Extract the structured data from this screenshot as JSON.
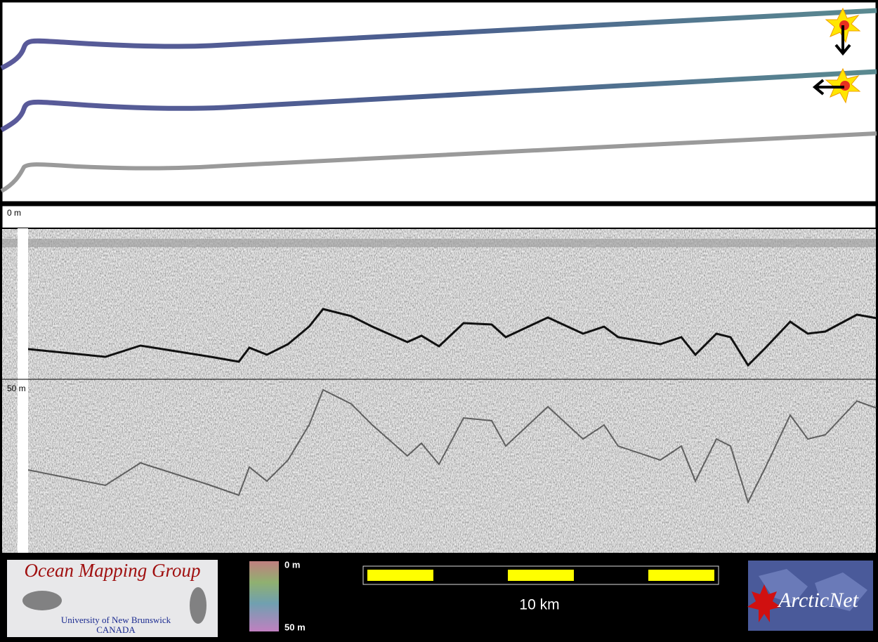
{
  "profile": {
    "depth_labels": [
      "0 m",
      "50 m"
    ]
  },
  "footer": {
    "logo": {
      "title": "Ocean Mapping Group",
      "subtitle": "University of New Brunswick",
      "country": "CANADA"
    },
    "colorbar": {
      "top": "0 m",
      "bottom": "50 m"
    },
    "scale_bar": {
      "label": "10 km"
    },
    "partner_logo": {
      "text": "ArcticNet"
    }
  }
}
